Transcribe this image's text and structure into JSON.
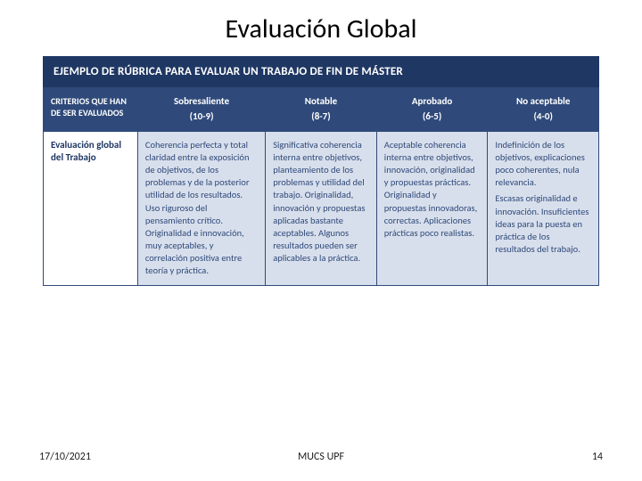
{
  "title": "Evaluación Global",
  "banner": "EJEMPLO DE RÚBRICA PARA EVALUAR UN TRABAJO DE FIN DE MÁSTER",
  "criteria_header": "CRITERIOS QUE HAN DE SER EVALUADOS",
  "levels": [
    {
      "name": "Sobresaliente",
      "range": "(10-9)"
    },
    {
      "name": "Notable",
      "range": "(8-7)"
    },
    {
      "name": "Aprobado",
      "range": "(6-5)"
    },
    {
      "name": "No aceptable",
      "range": "(4-0)"
    }
  ],
  "row_label": "Evaluación global del Trabajo",
  "cells": {
    "c0": "Coherencia perfecta y total claridad entre la exposición de objetivos, de los problemas y de la posterior utilidad de los resultados. Uso riguroso del pensamiento crítico. Originalidad e innovación, muy aceptables, y correlación positiva entre teoría y práctica.",
    "c1": "Significativa coherencia interna entre objetivos, planteamiento de los problemas y utilidad del trabajo. Originalidad, innovación y propuestas aplicadas bastante aceptables. Algunos resultados pueden ser aplicables a la práctica.",
    "c2": "Aceptable coherencia interna entre objetivos, innovación, originalidad y propuestas prácticas. Originalidad y propuestas innovadoras, correctas. Aplicaciones prácticas poco realistas.",
    "c3_p1": "Indefinición de los objetivos, explicaciones poco coherentes, nula relevancia.",
    "c3_p2": "Escasas originalidad e innovación. Insuficientes ideas para la puesta en práctica de los resultados del trabajo."
  },
  "footer": {
    "date": "17/10/2021",
    "center": "MUCS UPF",
    "page": "14"
  },
  "colors": {
    "banner_bg": "#1f3763",
    "header_bg": "#2f4a7a",
    "cell_bg": "#d8dfec",
    "cell_text": "#2f4a7a"
  }
}
